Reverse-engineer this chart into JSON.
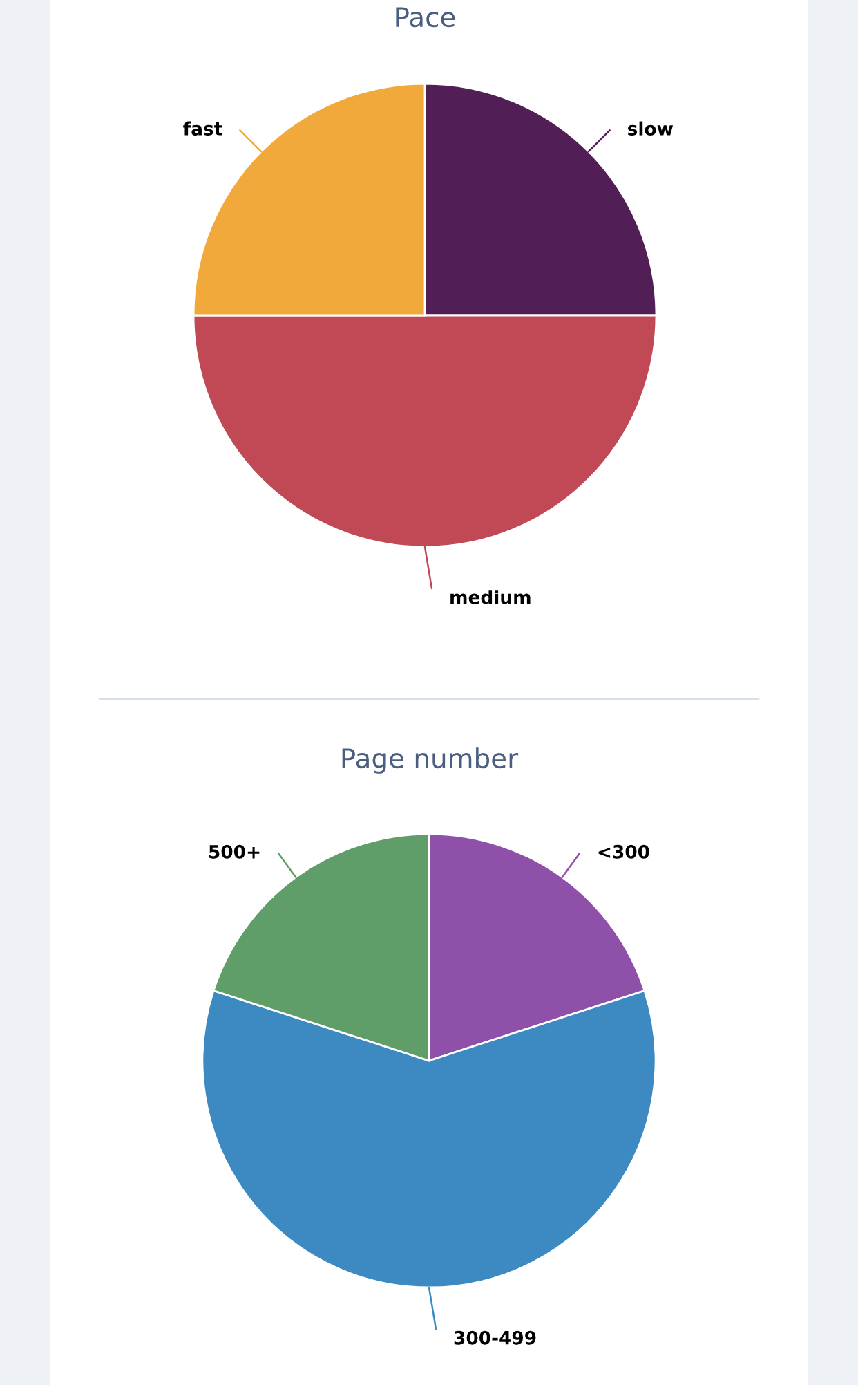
{
  "chart_data": [
    {
      "type": "pie",
      "title": "Pace",
      "categories": [
        "slow",
        "medium",
        "fast"
      ],
      "values": [
        25,
        50,
        25
      ],
      "colors": [
        "#521e56",
        "#c14855",
        "#f1a93b"
      ]
    },
    {
      "type": "pie",
      "title": "Page number",
      "categories": [
        "<300",
        "300-499",
        "500+"
      ],
      "values": [
        20,
        60,
        20
      ],
      "colors": [
        "#8f50aa",
        "#3d8ac3",
        "#5f9e69"
      ]
    }
  ]
}
